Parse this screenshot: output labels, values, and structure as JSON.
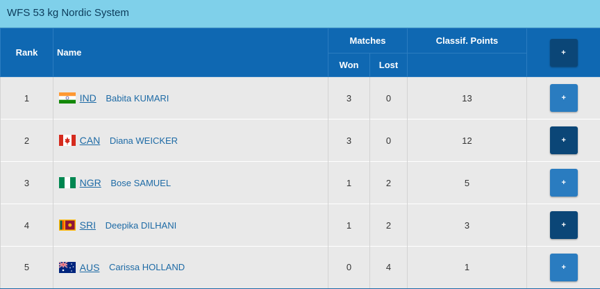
{
  "title": "WFS 53 kg Nordic System",
  "headers": {
    "rank": "Rank",
    "name": "Name",
    "matches": "Matches",
    "won": "Won",
    "lost": "Lost",
    "points": "Classif. Points",
    "plus": "+"
  },
  "rows": [
    {
      "rank": "1",
      "code": "IND",
      "name": "Babita KUMARI",
      "won": "3",
      "lost": "0",
      "points": "13",
      "button": "+",
      "flag_icon": "india-flag-icon"
    },
    {
      "rank": "2",
      "code": "CAN",
      "name": "Diana WEICKER",
      "won": "3",
      "lost": "0",
      "points": "12",
      "button": "+",
      "flag_icon": "canada-flag-icon"
    },
    {
      "rank": "3",
      "code": "NGR",
      "name": "Bose SAMUEL",
      "won": "1",
      "lost": "2",
      "points": "5",
      "button": "+",
      "flag_icon": "nigeria-flag-icon"
    },
    {
      "rank": "4",
      "code": "SRI",
      "name": "Deepika DILHANI",
      "won": "1",
      "lost": "2",
      "points": "3",
      "button": "+",
      "flag_icon": "sri-lanka-flag-icon"
    },
    {
      "rank": "5",
      "code": "AUS",
      "name": "Carissa HOLLAND",
      "won": "0",
      "lost": "4",
      "points": "1",
      "button": "+",
      "flag_icon": "australia-flag-icon"
    }
  ],
  "colors": {
    "header_blue": "#0f68b2",
    "title_bar": "#7fd0ea",
    "row_bg": "#e9e9e9",
    "button_blue": "#2a7cc0",
    "button_dark": "#0b4677",
    "link_blue": "#1d6aa5"
  }
}
